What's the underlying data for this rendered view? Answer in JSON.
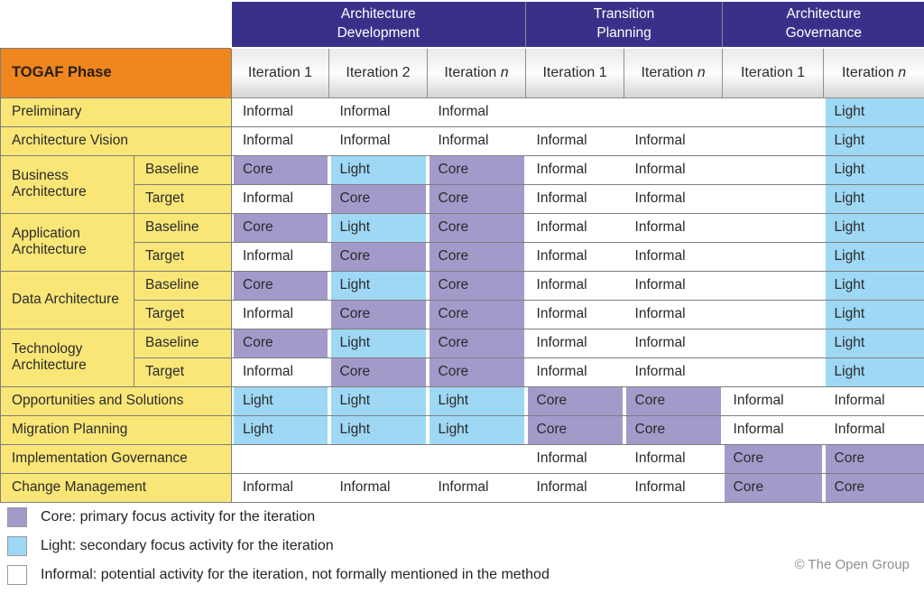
{
  "table": {
    "groups": [
      {
        "label": "Architecture\nDevelopment",
        "colspan": 3
      },
      {
        "label": "Transition\nPlanning",
        "colspan": 2
      },
      {
        "label": "Architecture\nGovernance",
        "colspan": 2
      }
    ],
    "phase_header": "TOGAF Phase",
    "iteration_headers": [
      {
        "prefix": "Iteration",
        "suffix": "1",
        "italic_suffix": false
      },
      {
        "prefix": "Iteration",
        "suffix": "2",
        "italic_suffix": false
      },
      {
        "prefix": "Iteration",
        "suffix": "n",
        "italic_suffix": true
      },
      {
        "prefix": "Iteration",
        "suffix": "1",
        "italic_suffix": false
      },
      {
        "prefix": "Iteration",
        "suffix": "n",
        "italic_suffix": true
      },
      {
        "prefix": "Iteration",
        "suffix": "1",
        "italic_suffix": false
      },
      {
        "prefix": "Iteration",
        "suffix": "n",
        "italic_suffix": true
      }
    ],
    "rows": [
      {
        "label": "Preliminary",
        "colspan": 2,
        "cells": [
          "Informal",
          "Informal",
          "Informal",
          "",
          "",
          "",
          "Light"
        ]
      },
      {
        "label": "Architecture Vision",
        "colspan": 2,
        "cells": [
          "Informal",
          "Informal",
          "Informal",
          "Informal",
          "Informal",
          "",
          "Light"
        ]
      },
      {
        "label": "Business Architecture",
        "rowspan": 2,
        "sub": "Baseline",
        "cells": [
          "Core",
          "Light",
          "Core",
          "Informal",
          "Informal",
          "",
          "Light"
        ]
      },
      {
        "sub": "Target",
        "cells": [
          "Informal",
          "Core",
          "Core",
          "Informal",
          "Informal",
          "",
          "Light"
        ]
      },
      {
        "label": "Application Architecture",
        "rowspan": 2,
        "sub": "Baseline",
        "cells": [
          "Core",
          "Light",
          "Core",
          "Informal",
          "Informal",
          "",
          "Light"
        ]
      },
      {
        "sub": "Target",
        "cells": [
          "Informal",
          "Core",
          "Core",
          "Informal",
          "Informal",
          "",
          "Light"
        ]
      },
      {
        "label": "Data Architecture",
        "rowspan": 2,
        "sub": "Baseline",
        "cells": [
          "Core",
          "Light",
          "Core",
          "Informal",
          "Informal",
          "",
          "Light"
        ]
      },
      {
        "sub": "Target",
        "cells": [
          "Informal",
          "Core",
          "Core",
          "Informal",
          "Informal",
          "",
          "Light"
        ]
      },
      {
        "label": "Technology Architecture",
        "rowspan": 2,
        "sub": "Baseline",
        "cells": [
          "Core",
          "Light",
          "Core",
          "Informal",
          "Informal",
          "",
          "Light"
        ]
      },
      {
        "sub": "Target",
        "cells": [
          "Informal",
          "Core",
          "Core",
          "Informal",
          "Informal",
          "",
          "Light"
        ]
      },
      {
        "label": "Opportunities and Solutions",
        "colspan": 2,
        "cells": [
          "Light",
          "Light",
          "Light",
          "Core",
          "Core",
          "Informal",
          "Informal"
        ]
      },
      {
        "label": "Migration Planning",
        "colspan": 2,
        "cells": [
          "Light",
          "Light",
          "Light",
          "Core",
          "Core",
          "Informal",
          "Informal"
        ]
      },
      {
        "label": "Implementation Governance",
        "colspan": 2,
        "cells": [
          "",
          "",
          "",
          "Informal",
          "Informal",
          "Core",
          "Core"
        ]
      },
      {
        "label": "Change Management",
        "colspan": 2,
        "cells": [
          "Informal",
          "Informal",
          "Informal",
          "Informal",
          "Informal",
          "Core",
          "Core"
        ]
      }
    ]
  },
  "legend": {
    "items": [
      {
        "key": "core",
        "color": "#A39ACA",
        "text": "Core: primary focus activity for the iteration"
      },
      {
        "key": "light",
        "color": "#9ED8F4",
        "text": "Light: secondary focus activity for the iteration"
      },
      {
        "key": "informal",
        "color": "#FFFFFF",
        "text": "Informal: potential activity for the iteration, not formally mentioned in the method"
      }
    ]
  },
  "footer": {
    "copyright": "© The Open Group"
  },
  "colors": {
    "group_header_bg": "#393189",
    "phase_header_bg": "#EF861E",
    "row_label_bg": "#F9E677",
    "core_bg": "#A39ACA",
    "light_bg": "#9ED8F4",
    "informal_bg": "#FFFFFF",
    "grid_line": "#7E7E7E"
  }
}
